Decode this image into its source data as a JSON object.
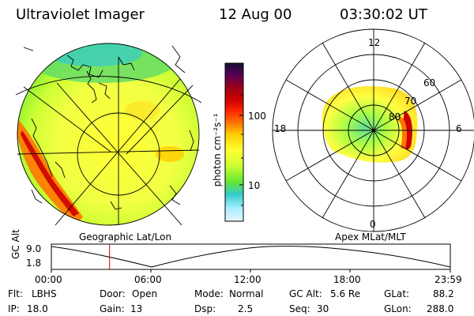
{
  "header": {
    "instrument": "Ultraviolet Imager",
    "date": "12 Aug 00",
    "time": "03:30:02 UT"
  },
  "colorbar": {
    "unit_label": "photon cm⁻²s⁻¹",
    "tick_labels": [
      "100",
      "10"
    ],
    "colors": [
      "#111133",
      "#550055",
      "#99001a",
      "#cc0000",
      "#ff2200",
      "#ff7700",
      "#ffcc00",
      "#ffff33",
      "#ccff33",
      "#66e633",
      "#33cccc",
      "#aaeeff",
      "#e6f5ff"
    ]
  },
  "left_panel": {
    "caption": "Geographic Lat/Lon"
  },
  "right_panel": {
    "caption": "Apex MLat/MLT",
    "mlt_labels": {
      "top": "12",
      "left": "18",
      "right": "6",
      "bottom": "0"
    },
    "lat_labels": [
      "60",
      "70",
      "80"
    ]
  },
  "altitude_plot": {
    "ylabel": "GC Alt",
    "y_ticks": [
      "9.0",
      "1.8"
    ],
    "x_ticks": [
      "00:00",
      "06:00",
      "12:00",
      "18:00",
      "23:59"
    ],
    "current_time_marker_hour": 3.5
  },
  "info": {
    "flt_label": "Flt:",
    "flt_value": "LBHS",
    "ip_label": "IP:",
    "ip_value": "18.0",
    "door_label": "Door:",
    "door_value": "Open",
    "gain_label": "Gain:",
    "gain_value": "13",
    "mode_label": "Mode:",
    "mode_value": "Normal",
    "dsp_label": "Dsp:",
    "dsp_value": "2.5",
    "gcalt_label": "GC Alt:",
    "gcalt_value": "5.6 Re",
    "seq_label": "Seq:",
    "seq_value": "30",
    "glat_label": "GLat:",
    "glat_value": "88.2",
    "glon_label": "GLon:",
    "glon_value": "288.0"
  }
}
